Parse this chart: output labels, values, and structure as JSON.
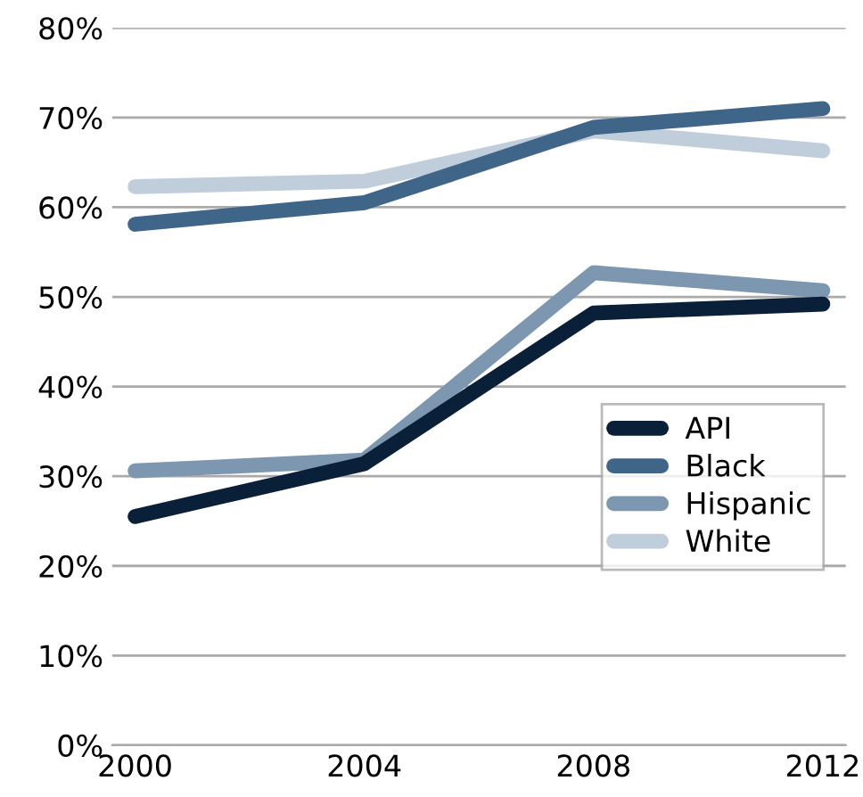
{
  "chart_data": {
    "type": "line",
    "categories": [
      "2000",
      "2004",
      "2008",
      "2012"
    ],
    "series": [
      {
        "name": "API",
        "color": "#0a1f38",
        "values": [
          25.5,
          31.4,
          48.2,
          49.2
        ]
      },
      {
        "name": "Black",
        "color": "#3f6589",
        "values": [
          58.1,
          60.5,
          68.9,
          71.0
        ]
      },
      {
        "name": "Hispanic",
        "color": "#7d97b0",
        "values": [
          30.6,
          31.8,
          52.7,
          50.7
        ]
      },
      {
        "name": "White",
        "color": "#c0cedb",
        "values": [
          62.3,
          62.9,
          68.5,
          66.3
        ]
      }
    ],
    "ylim": [
      0,
      80
    ],
    "yticks": [
      {
        "value": 0,
        "label": "0%"
      },
      {
        "value": 10,
        "label": "10%"
      },
      {
        "value": 20,
        "label": "20%"
      },
      {
        "value": 30,
        "label": "30%"
      },
      {
        "value": 40,
        "label": "40%"
      },
      {
        "value": 50,
        "label": "50%"
      },
      {
        "value": 60,
        "label": "60%"
      },
      {
        "value": 70,
        "label": "70%"
      },
      {
        "value": 80,
        "label": "80%"
      }
    ],
    "grid": "y",
    "legend": "right",
    "marker": "none",
    "line_style": "solid"
  }
}
